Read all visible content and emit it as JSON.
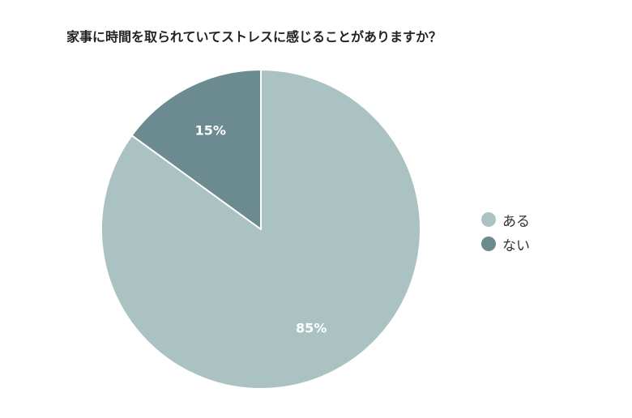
{
  "chart_data": {
    "type": "pie",
    "title": "家事に時間を取られていてストレスに感じることがありますか？",
    "categories": [
      "ある",
      "ない"
    ],
    "values": [
      85,
      15
    ],
    "data_labels": [
      "85%",
      "15%"
    ],
    "colors": [
      "#abc2c3",
      "#6b8b90"
    ],
    "start_angle_deg": 0,
    "direction": "clockwise",
    "legend_position": "right"
  }
}
